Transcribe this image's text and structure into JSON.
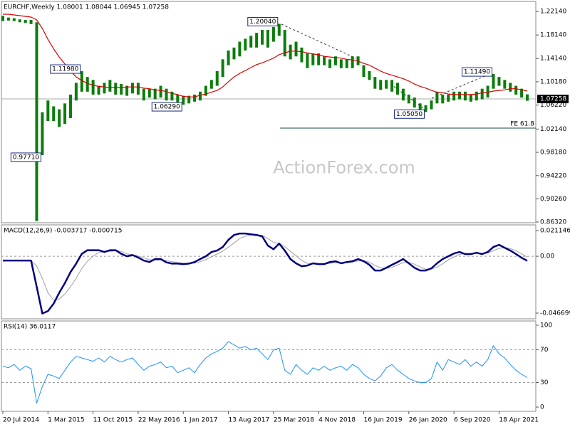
{
  "chart_data": [
    {
      "type": "ohlc",
      "title": "EURCHF,Weekly  1.08001 1.08044 1.06945 1.07258",
      "watermark": "ActionForex.com",
      "categories": [
        "20 Jul 2014",
        null,
        null,
        null,
        null,
        null,
        null,
        null,
        "1 Mar 2015",
        null,
        null,
        null,
        null,
        null,
        null,
        null,
        "11 Oct 2015",
        null,
        null,
        null,
        null,
        null,
        null,
        null,
        "22 May 2016",
        null,
        null,
        null,
        null,
        null,
        null,
        null,
        "1 Jan 2017",
        null,
        null,
        null,
        null,
        null,
        null,
        null,
        "13 Aug 2017",
        null,
        null,
        null,
        null,
        null,
        null,
        null,
        "25 Mar 2018",
        null,
        null,
        null,
        null,
        null,
        null,
        null,
        "4 Nov 2018",
        null,
        null,
        null,
        null,
        null,
        null,
        null,
        "16 Jun 2019",
        null,
        null,
        null,
        null,
        null,
        null,
        null,
        "26 Jan 2020",
        null,
        null,
        null,
        null,
        null,
        null,
        null,
        "6 Sep 2020",
        null,
        null,
        null,
        null,
        null,
        null,
        null,
        "18 Apr 2021",
        null,
        null,
        null,
        null,
        null
      ],
      "high": [
        1.214,
        1.211,
        1.21,
        1.208,
        1.207,
        1.207,
        1.203,
        1.05,
        1.07,
        1.06,
        1.055,
        1.065,
        1.08,
        1.1,
        1.1198,
        1.11,
        1.105,
        1.095,
        1.1,
        1.105,
        1.1,
        1.098,
        1.095,
        1.1,
        1.1,
        1.09,
        1.09,
        1.09,
        1.095,
        1.09,
        1.085,
        1.08,
        1.078,
        1.078,
        1.08,
        1.085,
        1.095,
        1.105,
        1.12,
        1.14,
        1.155,
        1.16,
        1.17,
        1.175,
        1.18,
        1.185,
        1.19,
        1.19,
        1.195,
        1.2004,
        1.19,
        1.165,
        1.17,
        1.16,
        1.15,
        1.15,
        1.15,
        1.145,
        1.14,
        1.145,
        1.14,
        1.14,
        1.145,
        1.145,
        1.13,
        1.12,
        1.11,
        1.105,
        1.105,
        1.105,
        1.1,
        1.09,
        1.08,
        1.075,
        1.065,
        1.062,
        1.07,
        1.085,
        1.08,
        1.08,
        1.085,
        1.085,
        1.085,
        1.08,
        1.085,
        1.09,
        1.095,
        1.1149,
        1.11,
        1.105,
        1.1,
        1.095,
        1.09,
        1.0804
      ],
      "low": [
        1.205,
        1.206,
        1.205,
        1.203,
        1.202,
        1.2,
        0.865,
        0.9771,
        1.035,
        1.035,
        1.025,
        1.03,
        1.04,
        1.07,
        1.085,
        1.085,
        1.08,
        1.08,
        1.082,
        1.085,
        1.08,
        1.08,
        1.078,
        1.082,
        1.08,
        1.07,
        1.075,
        1.072,
        1.075,
        1.07,
        1.07,
        1.065,
        1.0629,
        1.065,
        1.068,
        1.07,
        1.078,
        1.09,
        1.095,
        1.11,
        1.13,
        1.14,
        1.145,
        1.155,
        1.16,
        1.16,
        1.165,
        1.16,
        1.17,
        1.18,
        1.145,
        1.14,
        1.145,
        1.135,
        1.125,
        1.13,
        1.13,
        1.13,
        1.125,
        1.13,
        1.125,
        1.125,
        1.125,
        1.13,
        1.11,
        1.105,
        1.09,
        1.088,
        1.09,
        1.085,
        1.08,
        1.07,
        1.065,
        1.058,
        1.054,
        1.0505,
        1.055,
        1.065,
        1.065,
        1.068,
        1.07,
        1.072,
        1.07,
        1.068,
        1.07,
        1.072,
        1.075,
        1.09,
        1.095,
        1.09,
        1.085,
        1.08,
        1.075,
        1.0695
      ],
      "color": "#0a7d0a",
      "ma_values": [
        1.2167,
        1.2167,
        1.2155,
        1.2143,
        1.2131,
        1.2119,
        1.207,
        1.1925,
        1.174,
        1.158,
        1.144,
        1.132,
        1.12,
        1.11,
        1.104,
        1.099,
        1.096,
        1.094,
        1.093,
        1.092,
        1.092,
        1.092,
        1.093,
        1.093,
        1.093,
        1.091,
        1.09,
        1.088,
        1.087,
        1.085,
        1.082,
        1.08,
        1.077,
        1.076,
        1.076,
        1.079,
        1.081,
        1.084,
        1.087,
        1.093,
        1.102,
        1.11,
        1.116,
        1.121,
        1.126,
        1.131,
        1.134,
        1.138,
        1.142,
        1.148,
        1.151,
        1.154,
        1.154,
        1.153,
        1.151,
        1.149,
        1.148,
        1.145,
        1.144,
        1.143,
        1.142,
        1.14,
        1.139,
        1.137,
        1.133,
        1.13,
        1.125,
        1.12,
        1.116,
        1.113,
        1.11,
        1.107,
        1.103,
        1.098,
        1.094,
        1.091,
        1.087,
        1.084,
        1.083,
        1.081,
        1.08,
        1.08,
        1.08,
        1.08,
        1.081,
        1.083,
        1.084,
        1.086,
        1.087,
        1.088,
        1.09,
        1.09,
        1.088,
        1.086
      ],
      "ma_color": "#d80000",
      "ylim": [
        0.862,
        1.2385
      ],
      "yticks": [
        {
          "value": 1.2214,
          "label": "1.22140"
        },
        {
          "value": 1.1814,
          "label": "1.18140"
        },
        {
          "value": 1.1414,
          "label": "1.14140"
        },
        {
          "value": 1.1018,
          "label": "1.10180"
        },
        {
          "value": 1.0622,
          "label": "1.06220"
        },
        {
          "value": 1.0214,
          "label": "1.02140"
        },
        {
          "value": 0.9818,
          "label": "0.98180"
        },
        {
          "value": 0.9422,
          "label": "0.94220"
        },
        {
          "value": 0.9026,
          "label": "0.90260"
        },
        {
          "value": 0.8632,
          "label": "0.86320"
        }
      ],
      "annotations": [
        {
          "value": 1.2004,
          "label": "1.20040"
        },
        {
          "value": 1.1198,
          "label": "1.11980"
        },
        {
          "value": 1.0629,
          "label": "1.06290"
        },
        {
          "value": 1.0505,
          "label": "1.05050"
        },
        {
          "value": 1.1149,
          "label": "1.11490"
        },
        {
          "value": 0.9771,
          "label": "0.97710"
        }
      ],
      "last_price": {
        "value": 1.07258,
        "label": "1.07258"
      },
      "fe_level": {
        "value": 1.023,
        "label": "FE 61.8"
      }
    },
    {
      "type": "line",
      "title": "MACD(12,26,9) -0.003717 -0.000715",
      "series": [
        {
          "color": "#000080",
          "width": 2.5,
          "values": [
            -0.0035,
            -0.0035,
            -0.0035,
            -0.0035,
            -0.0035,
            -0.0035,
            -0.025,
            -0.047,
            -0.045,
            -0.039,
            -0.03,
            -0.022,
            -0.013,
            -0.006,
            0.002,
            0.005,
            0.005,
            0.005,
            0.0035,
            0.005,
            0.005,
            0.002,
            0,
            0.001,
            -0.001,
            -0.0035,
            -0.0047,
            -0.0023,
            -0.0023,
            -0.005,
            -0.006,
            -0.006,
            -0.0064,
            -0.006,
            -0.0047,
            -0.0023,
            0,
            0.0035,
            0.0047,
            0.0076,
            0.0135,
            0.0175,
            0.0187,
            0.0187,
            0.0181,
            0.0175,
            0.0164,
            0.0088,
            0.0058,
            0.0105,
            0.0047,
            -0.0023,
            -0.0058,
            -0.0082,
            -0.0076,
            -0.0058,
            -0.0064,
            -0.0064,
            -0.0047,
            -0.0041,
            -0.0058,
            -0.0047,
            -0.0041,
            -0.0023,
            -0.0041,
            -0.007,
            -0.0117,
            -0.0117,
            -0.0094,
            -0.007,
            -0.0047,
            -0.0023,
            -0.0058,
            -0.0094,
            -0.0117,
            -0.0117,
            -0.0099,
            -0.0058,
            -0.0023,
            0,
            0.0023,
            0.0035,
            0.0018,
            0.0018,
            0.0029,
            0.0018,
            0.0035,
            0.0076,
            0.0094,
            0.007,
            0.0047,
            0.0018,
            -0.0012,
            -0.003717
          ]
        },
        {
          "color": "#a0a0a0",
          "width": 1,
          "values": [
            -0.0035,
            -0.0035,
            -0.0035,
            -0.0035,
            -0.0035,
            -0.0035,
            -0.008,
            -0.018,
            -0.03,
            -0.036,
            -0.035,
            -0.031,
            -0.025,
            -0.018,
            -0.01,
            -0.004,
            0,
            0.003,
            0.004,
            0.004,
            0.0045,
            0.004,
            0.002,
            0.0012,
            0.0002,
            -0.0012,
            -0.0028,
            -0.0032,
            -0.003,
            -0.0035,
            -0.0045,
            -0.0052,
            -0.0058,
            -0.006,
            -0.0056,
            -0.0045,
            -0.0028,
            -0.0005,
            0.0018,
            0.0042,
            0.0075,
            0.011,
            0.0145,
            0.0165,
            0.0175,
            0.0177,
            0.0172,
            0.0145,
            0.0115,
            0.0105,
            0.008,
            0.004,
            0.0005,
            -0.0035,
            -0.0058,
            -0.0062,
            -0.0063,
            -0.0064,
            -0.0058,
            -0.0052,
            -0.0053,
            -0.0052,
            -0.0048,
            -0.0038,
            -0.0038,
            -0.0048,
            -0.0075,
            -0.0095,
            -0.01,
            -0.009,
            -0.0072,
            -0.0052,
            -0.005,
            -0.0065,
            -0.0088,
            -0.0105,
            -0.0106,
            -0.009,
            -0.0062,
            -0.003,
            -0.0005,
            0.0015,
            0.0022,
            0.0022,
            0.0025,
            0.0023,
            0.0027,
            0.0045,
            0.0065,
            0.0072,
            0.0063,
            0.0045,
            0.002,
            -0.000715
          ]
        }
      ],
      "ylim": [
        -0.0514,
        0.0258
      ],
      "yticks": [
        0.021146,
        {
          "value": 0,
          "label": "0.00"
        },
        -0.046699
      ],
      "levels": [
        0
      ]
    },
    {
      "type": "line",
      "title": "RSI(14) 36.0117",
      "series": [
        {
          "color": "#1e8fff",
          "width": 1,
          "values": [
            50,
            48,
            52,
            45,
            50,
            47,
            5,
            25,
            40,
            38,
            35,
            45,
            55,
            62,
            60,
            58,
            56,
            60,
            55,
            62,
            58,
            55,
            58,
            60,
            52,
            45,
            50,
            52,
            55,
            48,
            50,
            42,
            45,
            48,
            42,
            52,
            60,
            65,
            68,
            72,
            80,
            76,
            72,
            74,
            70,
            72,
            65,
            58,
            70,
            72,
            45,
            40,
            52,
            45,
            40,
            48,
            45,
            50,
            45,
            48,
            50,
            45,
            52,
            48,
            40,
            35,
            32,
            38,
            48,
            52,
            45,
            40,
            35,
            32,
            30,
            30,
            35,
            55,
            45,
            58,
            55,
            52,
            58,
            50,
            55,
            50,
            58,
            75,
            65,
            60,
            52,
            45,
            40,
            36.0117
          ]
        }
      ],
      "ylim": [
        -5.2,
        105.2
      ],
      "yticks": [
        100,
        70,
        30,
        0
      ],
      "levels": [
        70,
        30
      ]
    }
  ]
}
